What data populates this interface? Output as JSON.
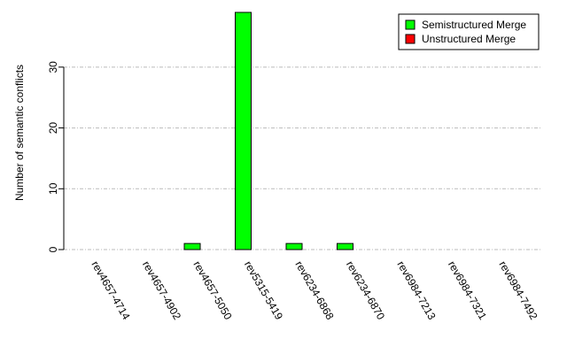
{
  "chart_data": {
    "type": "bar",
    "y_label": "Number of semantic conflicts",
    "categories": [
      "rev4657-4714",
      "rev4657-4902",
      "rev4657-5050",
      "rev5315-5419",
      "rev6234-6868",
      "rev6234-6870",
      "rev6984-7213",
      "rev6984-7321",
      "rev6984-7492"
    ],
    "series": [
      {
        "name": "Semistructured Merge",
        "color": "#00ff00",
        "values": [
          0,
          0,
          1,
          39,
          1,
          1,
          0,
          0,
          0
        ]
      },
      {
        "name": "Unstructured Merge",
        "color": "#ff0000",
        "values": [
          0,
          0,
          0,
          0,
          0,
          0,
          0,
          0,
          0
        ]
      }
    ],
    "ylim": [
      0,
      39
    ],
    "yticks": [
      0,
      10,
      20,
      30
    ],
    "grid": true,
    "legend": "top-right"
  }
}
